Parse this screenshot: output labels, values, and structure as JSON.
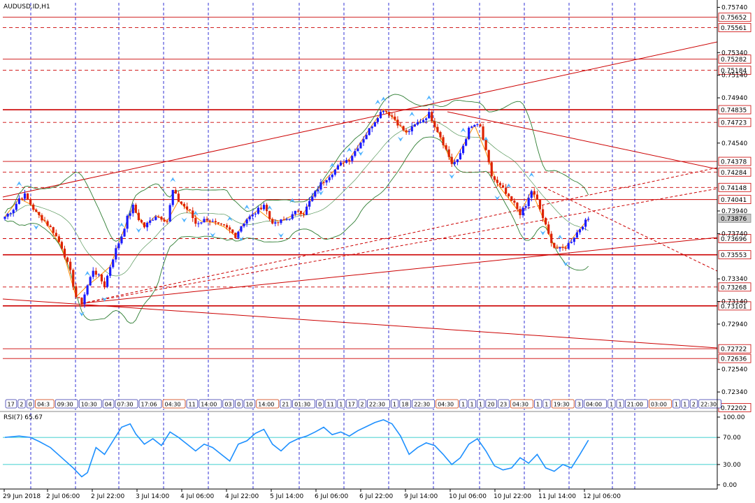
{
  "window": {
    "symbol_title": "AUDUSD.ID,H1",
    "rsi_title": "RSI(7) 65.67"
  },
  "colors": {
    "background": "#ffffff",
    "grid": "#0000cc",
    "level_line": "#cc0000",
    "bull_candle": "#1a1aff",
    "bear_candle": "#dd2200",
    "bollinger": "#2e7d32",
    "zigzag": "#ff8c00",
    "rsi_line": "#1e90ff",
    "rsi_level": "#00bfbf",
    "current_price_tag": "#c8c8c8"
  },
  "price_axis": {
    "ticks": [
      "0.75740",
      "0.75340",
      "0.75140",
      "0.74940",
      "0.74540",
      "0.73940",
      "0.73740",
      "0.73340",
      "0.73140",
      "0.72940",
      "0.72540",
      "0.72340"
    ]
  },
  "level_tags": [
    "0.75652",
    "0.75561",
    "0.75282",
    "0.75184",
    "0.74835",
    "0.74723",
    "0.74378",
    "0.74284",
    "0.74148",
    "0.74041",
    "0.73876",
    "0.73696",
    "0.73553",
    "0.73268",
    "0.73101",
    "0.72722",
    "0.72636",
    "0.72202"
  ],
  "rsi_axis": {
    "ticks": [
      "100.00",
      "70.00",
      "30.00",
      "0.00"
    ]
  },
  "time_axis": {
    "labels": [
      "29 Jun 2018",
      "2 Jul 06:00",
      "2 Jul 22:00",
      "3 Jul 14:00",
      "4 Jul 06:00",
      "4 Jul 22:00",
      "5 Jul 14:00",
      "6 Jul 06:00",
      "6 Jul 22:00",
      "9 Jul 14:00",
      "10 Jul 06:00",
      "10 Jul 22:00",
      "11 Jul 14:00",
      "12 Jul 06:00"
    ]
  },
  "session_boxes": [
    "17",
    "2",
    "0",
    "04:3",
    "09:30",
    "10:30",
    "04",
    "07:30",
    "17:06",
    "04:30",
    "11",
    "14:00",
    "03",
    "0",
    "10",
    "14:00",
    "21",
    "01:30",
    "0",
    "11",
    "1",
    "17",
    "2",
    "22:30",
    "1",
    "18",
    "22:30",
    "04:30",
    "1",
    "1",
    "1",
    "20",
    "23",
    "04:30",
    "1",
    "1",
    "19:30",
    "3",
    "04:00",
    "1",
    "1",
    "21:00",
    "03:00",
    "1",
    "1",
    "2",
    "22:30"
  ],
  "chart_data": {
    "type": "candlestick",
    "symbol": "AUDUSD.ID",
    "timeframe": "H1",
    "current_price": 0.73876,
    "ylim": [
      0.7218,
      0.7578
    ],
    "horizontal_levels": [
      0.75652,
      0.75561,
      0.75282,
      0.75184,
      0.74835,
      0.74723,
      0.74378,
      0.74284,
      0.74148,
      0.74041,
      0.73696,
      0.73553,
      0.73268,
      0.73101,
      0.72722,
      0.72636
    ],
    "close_path": [
      [
        0,
        0.7389
      ],
      [
        3,
        0.7396
      ],
      [
        5,
        0.7405
      ],
      [
        7,
        0.7408
      ],
      [
        9,
        0.74
      ],
      [
        11,
        0.7392
      ],
      [
        14,
        0.7385
      ],
      [
        17,
        0.7376
      ],
      [
        20,
        0.7362
      ],
      [
        23,
        0.734
      ],
      [
        25,
        0.7318
      ],
      [
        27,
        0.7313
      ],
      [
        29,
        0.7328
      ],
      [
        31,
        0.7342
      ],
      [
        33,
        0.7336
      ],
      [
        35,
        0.7328
      ],
      [
        37,
        0.7345
      ],
      [
        39,
        0.736
      ],
      [
        41,
        0.7372
      ],
      [
        43,
        0.7388
      ],
      [
        45,
        0.7398
      ],
      [
        47,
        0.7387
      ],
      [
        49,
        0.738
      ],
      [
        51,
        0.7385
      ],
      [
        53,
        0.739
      ],
      [
        55,
        0.7388
      ],
      [
        57,
        0.7385
      ],
      [
        59,
        0.7412
      ],
      [
        61,
        0.7403
      ],
      [
        63,
        0.7398
      ],
      [
        65,
        0.7393
      ],
      [
        67,
        0.7383
      ],
      [
        69,
        0.7385
      ],
      [
        71,
        0.7387
      ],
      [
        73,
        0.7384
      ],
      [
        75,
        0.7381
      ],
      [
        77,
        0.738
      ],
      [
        79,
        0.7377
      ],
      [
        81,
        0.7372
      ],
      [
        83,
        0.7381
      ],
      [
        85,
        0.7387
      ],
      [
        87,
        0.739
      ],
      [
        89,
        0.7395
      ],
      [
        91,
        0.74
      ],
      [
        93,
        0.7387
      ],
      [
        95,
        0.7382
      ],
      [
        97,
        0.7385
      ],
      [
        99,
        0.7387
      ],
      [
        101,
        0.739
      ],
      [
        103,
        0.7395
      ],
      [
        105,
        0.7392
      ],
      [
        107,
        0.7402
      ],
      [
        109,
        0.741
      ],
      [
        111,
        0.7418
      ],
      [
        113,
        0.7423
      ],
      [
        115,
        0.7428
      ],
      [
        117,
        0.7433
      ],
      [
        119,
        0.7438
      ],
      [
        121,
        0.744
      ],
      [
        123,
        0.7447
      ],
      [
        125,
        0.7455
      ],
      [
        127,
        0.7462
      ],
      [
        129,
        0.747
      ],
      [
        131,
        0.7478
      ],
      [
        133,
        0.7484
      ],
      [
        135,
        0.748
      ],
      [
        137,
        0.7475
      ],
      [
        139,
        0.7468
      ],
      [
        141,
        0.7463
      ],
      [
        143,
        0.7467
      ],
      [
        145,
        0.7472
      ],
      [
        147,
        0.7475
      ],
      [
        149,
        0.748
      ],
      [
        151,
        0.747
      ],
      [
        153,
        0.746
      ],
      [
        155,
        0.7448
      ],
      [
        157,
        0.7436
      ],
      [
        159,
        0.7438
      ],
      [
        161,
        0.7452
      ],
      [
        163,
        0.7466
      ],
      [
        165,
        0.747
      ],
      [
        167,
        0.7468
      ],
      [
        169,
        0.7446
      ],
      [
        171,
        0.7425
      ],
      [
        173,
        0.7418
      ],
      [
        175,
        0.7413
      ],
      [
        177,
        0.7405
      ],
      [
        179,
        0.74
      ],
      [
        181,
        0.7392
      ],
      [
        183,
        0.7398
      ],
      [
        185,
        0.7412
      ],
      [
        187,
        0.7403
      ],
      [
        189,
        0.7388
      ],
      [
        191,
        0.7373
      ],
      [
        193,
        0.7362
      ],
      [
        195,
        0.736
      ],
      [
        197,
        0.7362
      ],
      [
        199,
        0.7368
      ],
      [
        201,
        0.7375
      ],
      [
        203,
        0.7382
      ],
      [
        205,
        0.7387
      ]
    ],
    "rsi": {
      "period": 7,
      "value": 65.67,
      "levels": [
        70,
        30
      ],
      "ylim": [
        0,
        100
      ],
      "series": [
        [
          0,
          70
        ],
        [
          5,
          72
        ],
        [
          9,
          70
        ],
        [
          12,
          64
        ],
        [
          16,
          55
        ],
        [
          20,
          40
        ],
        [
          24,
          25
        ],
        [
          27,
          12
        ],
        [
          29,
          18
        ],
        [
          32,
          55
        ],
        [
          35,
          45
        ],
        [
          38,
          65
        ],
        [
          41,
          85
        ],
        [
          44,
          90
        ],
        [
          46,
          75
        ],
        [
          49,
          60
        ],
        [
          52,
          68
        ],
        [
          55,
          58
        ],
        [
          58,
          78
        ],
        [
          61,
          70
        ],
        [
          64,
          60
        ],
        [
          67,
          50
        ],
        [
          70,
          60
        ],
        [
          73,
          55
        ],
        [
          76,
          45
        ],
        [
          79,
          35
        ],
        [
          82,
          60
        ],
        [
          85,
          65
        ],
        [
          88,
          76
        ],
        [
          91,
          82
        ],
        [
          94,
          60
        ],
        [
          97,
          50
        ],
        [
          100,
          62
        ],
        [
          103,
          68
        ],
        [
          106,
          72
        ],
        [
          109,
          78
        ],
        [
          112,
          85
        ],
        [
          115,
          74
        ],
        [
          118,
          78
        ],
        [
          121,
          72
        ],
        [
          124,
          80
        ],
        [
          127,
          86
        ],
        [
          130,
          92
        ],
        [
          133,
          96
        ],
        [
          136,
          90
        ],
        [
          139,
          72
        ],
        [
          142,
          45
        ],
        [
          145,
          55
        ],
        [
          148,
          62
        ],
        [
          151,
          58
        ],
        [
          154,
          45
        ],
        [
          157,
          30
        ],
        [
          160,
          40
        ],
        [
          163,
          60
        ],
        [
          166,
          68
        ],
        [
          169,
          50
        ],
        [
          172,
          28
        ],
        [
          175,
          22
        ],
        [
          178,
          25
        ],
        [
          181,
          40
        ],
        [
          184,
          32
        ],
        [
          187,
          45
        ],
        [
          190,
          25
        ],
        [
          193,
          20
        ],
        [
          196,
          30
        ],
        [
          199,
          25
        ],
        [
          202,
          45
        ],
        [
          205,
          66
        ]
      ]
    }
  }
}
